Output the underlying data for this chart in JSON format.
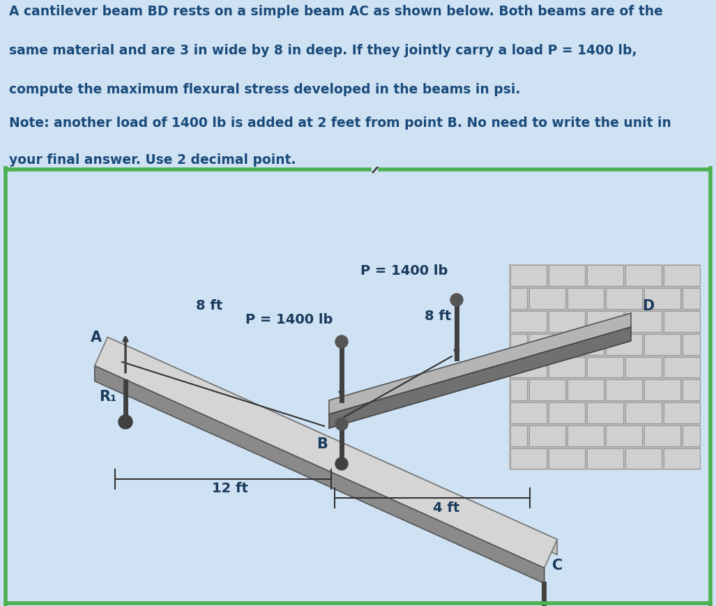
{
  "title_line1": "A cantilever beam BD rests on a simple beam AC as shown below. Both beams are of the",
  "title_line2": "same material and are 3 in wide by 8 in deep. If they jointly carry a load P = 1400 lb,",
  "title_line3": "compute the maximum flexural stress developed in the beams in psi.",
  "note_line1": "Note: another load of 1400 lb is added at 2 feet from point B. No need to write the unit in",
  "note_line2": "your final answer. Use 2 decimal point.",
  "title_bg": "#cfe2f3",
  "title_color": "#1a4a7a",
  "diagram_bg": "#ffffff",
  "border_color": "#4caf50",
  "label_A": "A",
  "label_B": "B",
  "label_C": "C",
  "label_D": "D",
  "label_R1": "R₁",
  "label_P1": "P = 1400 lb",
  "label_P2": "P = 1400 lb",
  "label_8ft_AC": "8 ft",
  "label_8ft_BD": "8 ft",
  "label_12ft": "12 ft",
  "label_4ft": "4 ft",
  "text_color": "#1a3a5c",
  "beam_top_AC": "#d8d8d8",
  "beam_side_AC": "#909090",
  "beam_top_BD": "#aaaaaa",
  "beam_side_BD": "#666666",
  "wall_bg": "#b8b8b8",
  "brick_face": "#cccccc",
  "brick_edge": "#999999",
  "rod_color": "#404040",
  "dim_color": "#333333"
}
